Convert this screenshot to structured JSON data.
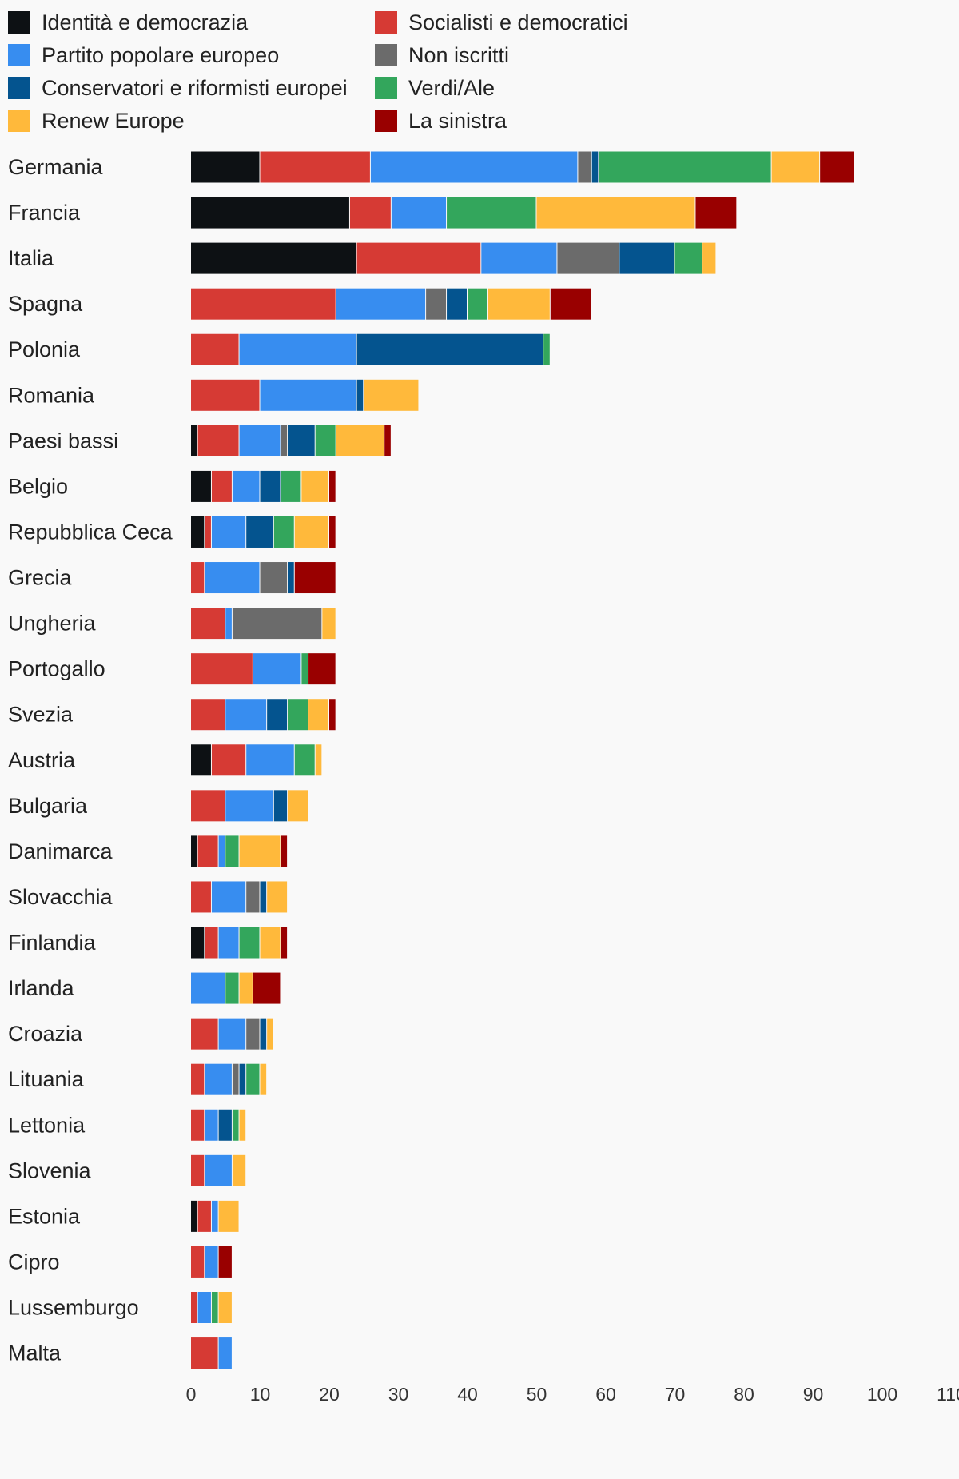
{
  "chart_data": {
    "type": "bar",
    "orientation": "horizontal",
    "stacked": true,
    "title": "",
    "xlabel": "",
    "ylabel": "",
    "xlim": [
      0,
      110
    ],
    "x_ticks": [
      0,
      10,
      20,
      30,
      40,
      50,
      60,
      70,
      80,
      90,
      100,
      110
    ],
    "grid": false,
    "legend_position": "top",
    "categories": [
      "Germania",
      "Francia",
      "Italia",
      "Spagna",
      "Polonia",
      "Romania",
      "Paesi bassi",
      "Belgio",
      "Repubblica Ceca",
      "Grecia",
      "Ungheria",
      "Portogallo",
      "Svezia",
      "Austria",
      "Bulgaria",
      "Danimarca",
      "Slovacchia",
      "Finlandia",
      "Irlanda",
      "Croazia",
      "Lituania",
      "Lettonia",
      "Slovenia",
      "Estonia",
      "Cipro",
      "Lussemburgo",
      "Malta"
    ],
    "series": [
      {
        "name": "Identità e democrazia",
        "color": "#0d1114",
        "values": [
          10,
          23,
          24,
          0,
          0,
          0,
          1,
          3,
          2,
          0,
          0,
          0,
          0,
          3,
          0,
          1,
          0,
          2,
          0,
          0,
          0,
          0,
          0,
          1,
          0,
          0,
          0
        ]
      },
      {
        "name": "Socialisti e democratici",
        "color": "#d63a34",
        "values": [
          16,
          6,
          18,
          21,
          7,
          10,
          6,
          3,
          1,
          2,
          5,
          9,
          5,
          5,
          5,
          3,
          3,
          2,
          0,
          4,
          2,
          2,
          2,
          2,
          2,
          1,
          4
        ]
      },
      {
        "name": "Partito popolare europeo",
        "color": "#378df0",
        "values": [
          30,
          8,
          11,
          13,
          17,
          14,
          6,
          4,
          5,
          8,
          1,
          7,
          6,
          7,
          7,
          1,
          5,
          3,
          5,
          4,
          4,
          2,
          4,
          1,
          2,
          2,
          2
        ]
      },
      {
        "name": "Non iscritti",
        "color": "#6b6b6b",
        "values": [
          2,
          0,
          9,
          3,
          0,
          0,
          1,
          0,
          0,
          4,
          13,
          0,
          0,
          0,
          0,
          0,
          2,
          0,
          0,
          2,
          1,
          0,
          0,
          0,
          0,
          0,
          0
        ]
      },
      {
        "name": "Conservatori e riformisti europei",
        "color": "#04548f",
        "values": [
          1,
          0,
          8,
          3,
          27,
          1,
          4,
          3,
          4,
          1,
          0,
          0,
          3,
          0,
          2,
          0,
          1,
          0,
          0,
          1,
          1,
          2,
          0,
          0,
          0,
          0,
          0
        ]
      },
      {
        "name": "Verdi/Ale",
        "color": "#33a65c",
        "values": [
          25,
          13,
          4,
          3,
          1,
          0,
          3,
          3,
          3,
          0,
          0,
          1,
          3,
          3,
          0,
          2,
          0,
          3,
          2,
          0,
          2,
          1,
          0,
          0,
          0,
          1,
          0
        ]
      },
      {
        "name": "Renew Europe",
        "color": "#ffb93b",
        "values": [
          7,
          23,
          2,
          9,
          0,
          8,
          7,
          4,
          5,
          0,
          2,
          0,
          3,
          1,
          3,
          6,
          3,
          3,
          2,
          1,
          1,
          1,
          2,
          3,
          0,
          2,
          0
        ]
      },
      {
        "name": "La sinistra",
        "color": "#990000",
        "values": [
          5,
          6,
          0,
          6,
          0,
          0,
          1,
          1,
          1,
          6,
          0,
          4,
          1,
          0,
          0,
          1,
          0,
          1,
          4,
          0,
          0,
          0,
          0,
          0,
          2,
          0,
          0
        ]
      }
    ],
    "legend_order": [
      "Identità e democrazia",
      "Partito popolare europeo",
      "Conservatori e riformisti europei",
      "Renew Europe",
      "Socialisti e democratici",
      "Non iscritti",
      "Verdi/Ale",
      "La sinistra"
    ]
  }
}
